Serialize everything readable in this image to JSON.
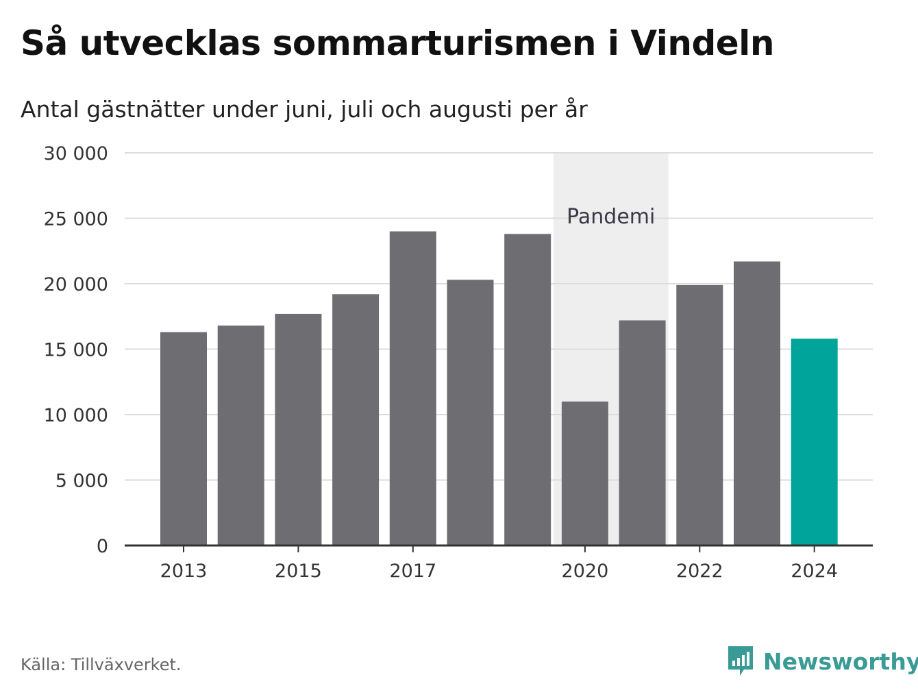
{
  "header": {
    "title": "Så utvecklas sommarturismen i Vindeln",
    "subtitle": "Antal gästnätter under juni, juli och augusti per år"
  },
  "footer": {
    "source": "Källa: Tillväxverket.",
    "brand": "Newsworthy",
    "brand_icon": "newsworthy-logo-icon"
  },
  "colors": {
    "bar_default": "#6e6d72",
    "bar_highlight": "#00a49a",
    "shade": "#eeeeee",
    "grid": "#dcdcdc",
    "axis": "#333333",
    "brand": "#3a9b96"
  },
  "chart_data": {
    "type": "bar",
    "title": "Så utvecklas sommarturismen i Vindeln",
    "subtitle": "Antal gästnätter under juni, juli och augusti per år",
    "xlabel": "",
    "ylabel": "",
    "ylim": [
      0,
      30000
    ],
    "y_ticks": [
      0,
      5000,
      10000,
      15000,
      20000,
      25000,
      30000
    ],
    "y_tick_labels": [
      "0",
      "5 000",
      "10 000",
      "15 000",
      "20 000",
      "25 000",
      "30 000"
    ],
    "categories": [
      2013,
      2014,
      2015,
      2016,
      2017,
      2018,
      2019,
      2020,
      2021,
      2022,
      2023,
      2024
    ],
    "x_tick_labels": [
      "2013",
      "2015",
      "2017",
      "2020",
      "2022",
      "2024"
    ],
    "values": [
      16300,
      16800,
      17700,
      19200,
      24000,
      20300,
      23800,
      11000,
      17200,
      19900,
      21700,
      15800
    ],
    "highlight": [
      2024
    ],
    "shaded_range": [
      2020,
      2021
    ],
    "annotation": "Pandemi",
    "grid": true,
    "legend": "none",
    "source": "Källa: Tillväxverket."
  }
}
